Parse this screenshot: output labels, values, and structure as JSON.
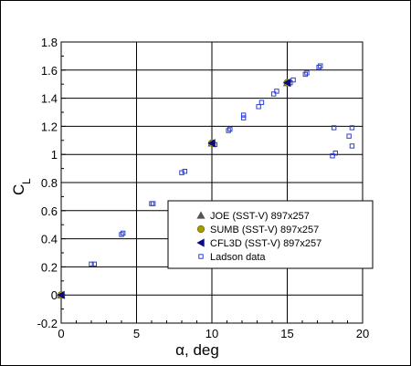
{
  "chart_data": {
    "type": "scatter",
    "xlabel": "α, deg",
    "ylabel_main": "C",
    "ylabel_sub": "L",
    "xlim": [
      0,
      20
    ],
    "ylim": [
      -0.2,
      1.8
    ],
    "xticks": [
      0,
      5,
      10,
      15,
      20
    ],
    "yticks": [
      -0.2,
      0,
      0.2,
      0.4,
      0.6,
      0.8,
      1,
      1.2,
      1.4,
      1.6,
      1.8
    ],
    "ytick_labels": [
      "-0.2",
      "0",
      "0.2",
      "0.4",
      "0.6",
      "0.8",
      "1",
      "1.2",
      "1.4",
      "1.6",
      "1.8"
    ],
    "xtick_labels": [
      "0",
      "5",
      "10",
      "15",
      "20"
    ],
    "grid": true,
    "legend_position": "lower-right",
    "series": [
      {
        "name": "JOE (SST-V) 897x257",
        "marker": "triangle-up",
        "color": "#555555",
        "points": [
          [
            0,
            0.0
          ],
          [
            10,
            1.08
          ],
          [
            15,
            1.51
          ]
        ]
      },
      {
        "name": "SUMB (SST-V) 897x257",
        "marker": "circle",
        "color": "#a39a00",
        "points": [
          [
            0,
            0.0
          ],
          [
            10,
            1.08
          ],
          [
            15,
            1.51
          ]
        ]
      },
      {
        "name": "CFL3D (SST-V) 897x257",
        "marker": "triangle-left",
        "color": "#0a0a80",
        "points": [
          [
            0,
            0.0
          ],
          [
            10,
            1.08
          ],
          [
            15,
            1.51
          ]
        ]
      },
      {
        "name": "Ladson data",
        "marker": "square-open",
        "color": "#2b3fd6",
        "points": [
          [
            0.0,
            0.0
          ],
          [
            0.05,
            0.0
          ],
          [
            2.0,
            0.22
          ],
          [
            2.2,
            0.22
          ],
          [
            4.0,
            0.43
          ],
          [
            4.1,
            0.44
          ],
          [
            6.0,
            0.65
          ],
          [
            6.1,
            0.65
          ],
          [
            8.0,
            0.87
          ],
          [
            8.2,
            0.88
          ],
          [
            10.0,
            1.08
          ],
          [
            10.2,
            1.07
          ],
          [
            11.1,
            1.17
          ],
          [
            11.2,
            1.18
          ],
          [
            12.1,
            1.26
          ],
          [
            12.1,
            1.28
          ],
          [
            13.1,
            1.34
          ],
          [
            13.3,
            1.37
          ],
          [
            14.1,
            1.43
          ],
          [
            14.3,
            1.45
          ],
          [
            15.2,
            1.51
          ],
          [
            15.4,
            1.53
          ],
          [
            16.2,
            1.57
          ],
          [
            16.3,
            1.58
          ],
          [
            17.1,
            1.62
          ],
          [
            17.2,
            1.63
          ],
          [
            18.1,
            1.19
          ],
          [
            18.0,
            0.99
          ],
          [
            18.2,
            1.01
          ],
          [
            19.1,
            1.13
          ],
          [
            19.3,
            1.19
          ],
          [
            19.3,
            1.06
          ]
        ]
      }
    ]
  }
}
